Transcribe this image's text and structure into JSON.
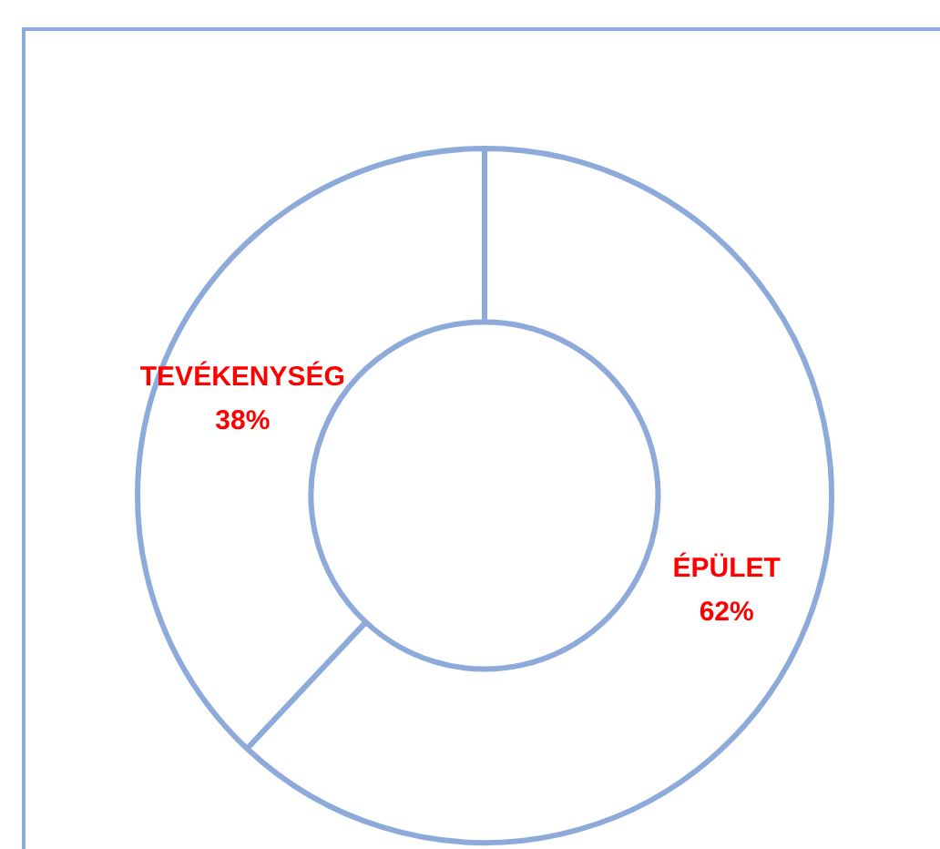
{
  "chart_data": {
    "type": "donut",
    "categories": [
      "ÉPÜLET",
      "TEVÉKENYSÉG"
    ],
    "values": [
      62,
      38
    ],
    "colors": [
      "#ffffff",
      "#ffffff"
    ],
    "value_labels": [
      "62%",
      "38%"
    ],
    "legend": false
  }
}
